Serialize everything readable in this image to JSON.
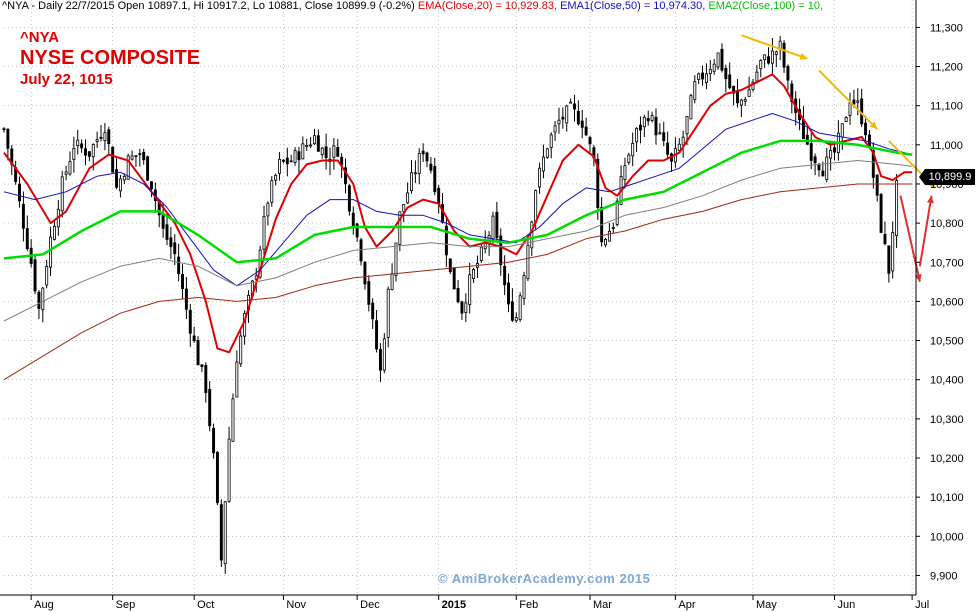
{
  "header": {
    "prefix": "^NYA - Daily 22/7/2015 Open 10897.1, Hi 10917.2, Lo 10881, Close 10899.9 (-0.2%) ",
    "ema20": "EMA(Close,20) = 10,929.83, ",
    "ema50": "EMA1(Close,50) = 10,974.30, ",
    "ema100": "EMA2(Close,100) = 10,"
  },
  "annotations": {
    "symbol": "^NYA",
    "title": "NYSE COMPOSITE",
    "date": "July 22, 1015"
  },
  "watermark": "© AmiBrokerAcademy.com 2015",
  "last_price_label": "10,899.9",
  "colors": {
    "price": "#000000",
    "ema20": "#e00000",
    "ema50": "#1010c0",
    "ema100": "#00dd00",
    "ema_gray": "#808080",
    "ema_brown": "#a02a10",
    "arrow_yellow": "#f5b800",
    "arrow_red": "#e03030",
    "grid": "#9aa0a6"
  },
  "chart_data": {
    "type": "line",
    "ylim": [
      9850,
      11370
    ],
    "y_ticks": [
      9900,
      10000,
      10100,
      10200,
      10300,
      10400,
      10500,
      10600,
      10700,
      10800,
      10900,
      11000,
      11100,
      11200,
      11300
    ],
    "y_tick_labels": [
      "9,900",
      "10,000",
      "10,100",
      "10,200",
      "10,300",
      "10,400",
      "10,500",
      "10,600",
      "10,700",
      "10,800",
      "10,900",
      "11,000",
      "11,100",
      "11,200",
      "11,300"
    ],
    "x_range": [
      0,
      230
    ],
    "x_ticks": [
      {
        "label": "Aug",
        "x": 7,
        "bold": false
      },
      {
        "label": "Sep",
        "x": 28,
        "bold": false
      },
      {
        "label": "Oct",
        "x": 49,
        "bold": false
      },
      {
        "label": "Nov",
        "x": 72,
        "bold": false
      },
      {
        "label": "Dec",
        "x": 91,
        "bold": false
      },
      {
        "label": "2015",
        "x": 112,
        "bold": true
      },
      {
        "label": "Feb",
        "x": 132,
        "bold": false
      },
      {
        "label": "Mar",
        "x": 151,
        "bold": false
      },
      {
        "label": "Apr",
        "x": 173,
        "bold": false
      },
      {
        "label": "May",
        "x": 193,
        "bold": false
      },
      {
        "label": "Jun",
        "x": 214,
        "bold": false
      },
      {
        "label": "Jul",
        "x": 234,
        "bold": false
      }
    ],
    "close_path": [
      [
        0,
        11040
      ],
      [
        3,
        10900
      ],
      [
        7,
        10700
      ],
      [
        9,
        10580
      ],
      [
        12,
        10760
      ],
      [
        15,
        10900
      ],
      [
        18,
        11000
      ],
      [
        22,
        10980
      ],
      [
        26,
        11050
      ],
      [
        29,
        10890
      ],
      [
        32,
        10960
      ],
      [
        35,
        10980
      ],
      [
        38,
        10900
      ],
      [
        41,
        10780
      ],
      [
        44,
        10720
      ],
      [
        47,
        10580
      ],
      [
        50,
        10450
      ],
      [
        52,
        10380
      ],
      [
        54,
        10200
      ],
      [
        56,
        9940
      ],
      [
        58,
        10250
      ],
      [
        60,
        10460
      ],
      [
        62,
        10560
      ],
      [
        65,
        10680
      ],
      [
        68,
        10860
      ],
      [
        71,
        10950
      ],
      [
        74,
        10960
      ],
      [
        77,
        10990
      ],
      [
        80,
        11020
      ],
      [
        83,
        10970
      ],
      [
        86,
        10990
      ],
      [
        89,
        10850
      ],
      [
        92,
        10720
      ],
      [
        95,
        10540
      ],
      [
        97,
        10420
      ],
      [
        99,
        10620
      ],
      [
        102,
        10820
      ],
      [
        105,
        10910
      ],
      [
        108,
        10990
      ],
      [
        110,
        10940
      ],
      [
        112,
        10860
      ],
      [
        115,
        10670
      ],
      [
        118,
        10580
      ],
      [
        120,
        10650
      ],
      [
        123,
        10720
      ],
      [
        126,
        10800
      ],
      [
        128,
        10700
      ],
      [
        130,
        10580
      ],
      [
        132,
        10560
      ],
      [
        134,
        10680
      ],
      [
        137,
        10890
      ],
      [
        140,
        11000
      ],
      [
        143,
        11060
      ],
      [
        146,
        11090
      ],
      [
        149,
        11060
      ],
      [
        152,
        10960
      ],
      [
        154,
        10750
      ],
      [
        157,
        10800
      ],
      [
        160,
        10950
      ],
      [
        163,
        11030
      ],
      [
        166,
        11080
      ],
      [
        169,
        11020
      ],
      [
        172,
        10950
      ],
      [
        175,
        11020
      ],
      [
        178,
        11150
      ],
      [
        181,
        11190
      ],
      [
        184,
        11230
      ],
      [
        186,
        11170
      ],
      [
        189,
        11100
      ],
      [
        192,
        11140
      ],
      [
        195,
        11210
      ],
      [
        198,
        11230
      ],
      [
        200,
        11250
      ],
      [
        202,
        11150
      ],
      [
        205,
        11050
      ],
      [
        208,
        10980
      ],
      [
        211,
        10940
      ],
      [
        214,
        10980
      ],
      [
        216,
        11040
      ],
      [
        218,
        11120
      ],
      [
        220,
        11100
      ],
      [
        222,
        11040
      ],
      [
        224,
        10920
      ],
      [
        226,
        10790
      ],
      [
        228,
        10680
      ],
      [
        230,
        10890
      ]
    ],
    "series": [
      {
        "name": "EMA(Close,20)",
        "values": [
          [
            0,
            10980
          ],
          [
            6,
            10900
          ],
          [
            12,
            10800
          ],
          [
            16,
            10830
          ],
          [
            22,
            10940
          ],
          [
            27,
            10975
          ],
          [
            32,
            10960
          ],
          [
            38,
            10880
          ],
          [
            44,
            10800
          ],
          [
            48,
            10720
          ],
          [
            52,
            10600
          ],
          [
            55,
            10480
          ],
          [
            58,
            10470
          ],
          [
            62,
            10550
          ],
          [
            66,
            10680
          ],
          [
            70,
            10810
          ],
          [
            74,
            10900
          ],
          [
            78,
            10950
          ],
          [
            82,
            10960
          ],
          [
            86,
            10960
          ],
          [
            90,
            10900
          ],
          [
            93,
            10790
          ],
          [
            96,
            10740
          ],
          [
            100,
            10780
          ],
          [
            104,
            10840
          ],
          [
            108,
            10860
          ],
          [
            112,
            10850
          ],
          [
            116,
            10780
          ],
          [
            120,
            10740
          ],
          [
            124,
            10750
          ],
          [
            128,
            10740
          ],
          [
            132,
            10720
          ],
          [
            136,
            10780
          ],
          [
            140,
            10870
          ],
          [
            144,
            10960
          ],
          [
            148,
            11000
          ],
          [
            152,
            10970
          ],
          [
            155,
            10890
          ],
          [
            158,
            10870
          ],
          [
            162,
            10920
          ],
          [
            166,
            10960
          ],
          [
            170,
            10960
          ],
          [
            174,
            10980
          ],
          [
            178,
            11040
          ],
          [
            182,
            11100
          ],
          [
            186,
            11130
          ],
          [
            190,
            11140
          ],
          [
            194,
            11160
          ],
          [
            198,
            11180
          ],
          [
            201,
            11150
          ],
          [
            205,
            11080
          ],
          [
            209,
            11020
          ],
          [
            213,
            11000
          ],
          [
            217,
            11010
          ],
          [
            221,
            11020
          ],
          [
            224,
            10980
          ],
          [
            226,
            10920
          ],
          [
            229,
            10910
          ],
          [
            232,
            10930
          ],
          [
            234,
            10930
          ]
        ]
      },
      {
        "name": "EMA1(Close,50)",
        "values": [
          [
            0,
            10880
          ],
          [
            8,
            10860
          ],
          [
            16,
            10880
          ],
          [
            24,
            10920
          ],
          [
            30,
            10930
          ],
          [
            36,
            10900
          ],
          [
            42,
            10840
          ],
          [
            48,
            10760
          ],
          [
            54,
            10680
          ],
          [
            60,
            10640
          ],
          [
            66,
            10680
          ],
          [
            72,
            10750
          ],
          [
            78,
            10820
          ],
          [
            84,
            10860
          ],
          [
            90,
            10860
          ],
          [
            96,
            10830
          ],
          [
            102,
            10820
          ],
          [
            108,
            10820
          ],
          [
            114,
            10800
          ],
          [
            120,
            10770
          ],
          [
            126,
            10760
          ],
          [
            132,
            10750
          ],
          [
            138,
            10790
          ],
          [
            144,
            10850
          ],
          [
            150,
            10890
          ],
          [
            156,
            10880
          ],
          [
            162,
            10900
          ],
          [
            168,
            10920
          ],
          [
            174,
            10940
          ],
          [
            180,
            10990
          ],
          [
            186,
            11040
          ],
          [
            192,
            11060
          ],
          [
            198,
            11080
          ],
          [
            204,
            11060
          ],
          [
            210,
            11030
          ],
          [
            216,
            11020
          ],
          [
            222,
            11010
          ],
          [
            228,
            10990
          ],
          [
            234,
            10975
          ]
        ]
      },
      {
        "name": "EMA2(Close,100)",
        "values": [
          [
            0,
            10710
          ],
          [
            10,
            10720
          ],
          [
            20,
            10780
          ],
          [
            30,
            10830
          ],
          [
            40,
            10830
          ],
          [
            50,
            10770
          ],
          [
            60,
            10700
          ],
          [
            70,
            10710
          ],
          [
            80,
            10770
          ],
          [
            90,
            10790
          ],
          [
            100,
            10790
          ],
          [
            110,
            10790
          ],
          [
            120,
            10760
          ],
          [
            130,
            10750
          ],
          [
            140,
            10770
          ],
          [
            150,
            10820
          ],
          [
            160,
            10860
          ],
          [
            170,
            10880
          ],
          [
            180,
            10930
          ],
          [
            190,
            10980
          ],
          [
            200,
            11010
          ],
          [
            210,
            11010
          ],
          [
            220,
            11000
          ],
          [
            230,
            10980
          ],
          [
            234,
            10975
          ]
        ]
      },
      {
        "values": [
          [
            0,
            10550
          ],
          [
            10,
            10600
          ],
          [
            20,
            10650
          ],
          [
            30,
            10690
          ],
          [
            40,
            10710
          ],
          [
            50,
            10690
          ],
          [
            60,
            10640
          ],
          [
            70,
            10660
          ],
          [
            80,
            10700
          ],
          [
            90,
            10730
          ],
          [
            100,
            10740
          ],
          [
            110,
            10750
          ],
          [
            120,
            10740
          ],
          [
            130,
            10740
          ],
          [
            140,
            10760
          ],
          [
            150,
            10780
          ],
          [
            160,
            10820
          ],
          [
            170,
            10840
          ],
          [
            180,
            10870
          ],
          [
            190,
            10910
          ],
          [
            200,
            10940
          ],
          [
            210,
            10950
          ],
          [
            220,
            10960
          ],
          [
            230,
            10950
          ],
          [
            234,
            10945
          ]
        ]
      },
      {
        "values": [
          [
            0,
            10400
          ],
          [
            10,
            10460
          ],
          [
            20,
            10520
          ],
          [
            30,
            10570
          ],
          [
            40,
            10600
          ],
          [
            50,
            10610
          ],
          [
            60,
            10600
          ],
          [
            70,
            10610
          ],
          [
            80,
            10640
          ],
          [
            90,
            10660
          ],
          [
            100,
            10670
          ],
          [
            110,
            10680
          ],
          [
            120,
            10690
          ],
          [
            130,
            10700
          ],
          [
            140,
            10720
          ],
          [
            150,
            10760
          ],
          [
            160,
            10780
          ],
          [
            170,
            10810
          ],
          [
            180,
            10830
          ],
          [
            190,
            10860
          ],
          [
            200,
            10880
          ],
          [
            210,
            10890
          ],
          [
            220,
            10900
          ],
          [
            230,
            10900
          ],
          [
            234,
            10900
          ]
        ]
      }
    ],
    "annotations_arrows": [
      {
        "color": "yellow",
        "from": [
          190,
          11280
        ],
        "to": [
          207,
          11220
        ]
      },
      {
        "color": "yellow",
        "from": [
          210,
          11190
        ],
        "to": [
          225,
          11040
        ]
      },
      {
        "color": "yellow",
        "from": [
          228,
          11010
        ],
        "to": [
          240,
          10890
        ]
      },
      {
        "color": "red",
        "from": [
          231,
          10870
        ],
        "to": [
          236,
          10650
        ]
      },
      {
        "color": "red",
        "from": [
          236,
          10690
        ],
        "to": [
          239,
          10870
        ]
      }
    ]
  }
}
